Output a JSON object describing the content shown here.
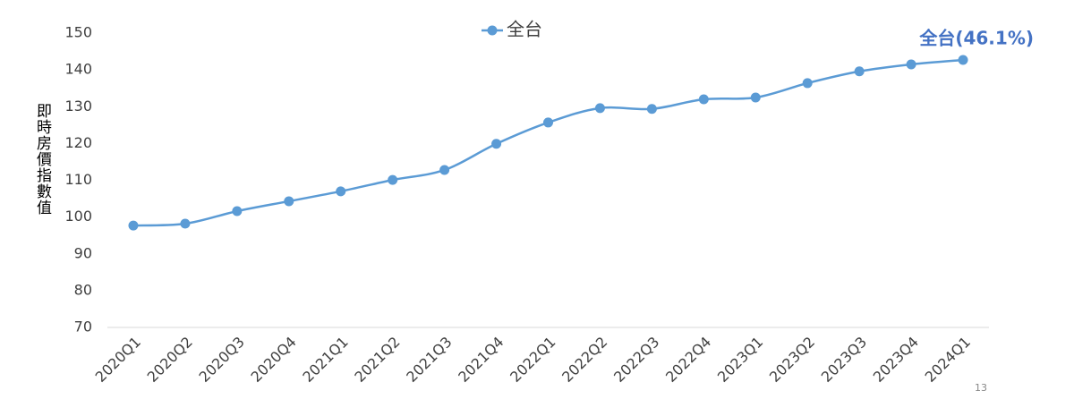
{
  "chart_data": {
    "type": "line",
    "y_label": "即時房價指數值",
    "categories": [
      "2020Q1",
      "2020Q2",
      "2020Q3",
      "2020Q4",
      "2021Q1",
      "2021Q2",
      "2021Q3",
      "2021Q4",
      "2022Q1",
      "2022Q2",
      "2022Q3",
      "2022Q4",
      "2023Q1",
      "2023Q2",
      "2023Q3",
      "2023Q4",
      "2024Q1"
    ],
    "series": [
      {
        "name": "全台",
        "color": "#5b9bd5",
        "values": [
          97.7,
          98.2,
          101.6,
          104.3,
          107.0,
          110.1,
          112.8,
          119.9,
          125.7,
          129.6,
          129.4,
          132.0,
          132.5,
          136.4,
          139.6,
          141.5,
          142.7
        ]
      }
    ],
    "annotation": "全台(46.1%)",
    "ylim": [
      70,
      150
    ],
    "yticks": [
      70,
      80,
      90,
      100,
      110,
      120,
      130,
      140,
      150
    ],
    "grid": false,
    "legend": "top"
  },
  "page_number": "13"
}
